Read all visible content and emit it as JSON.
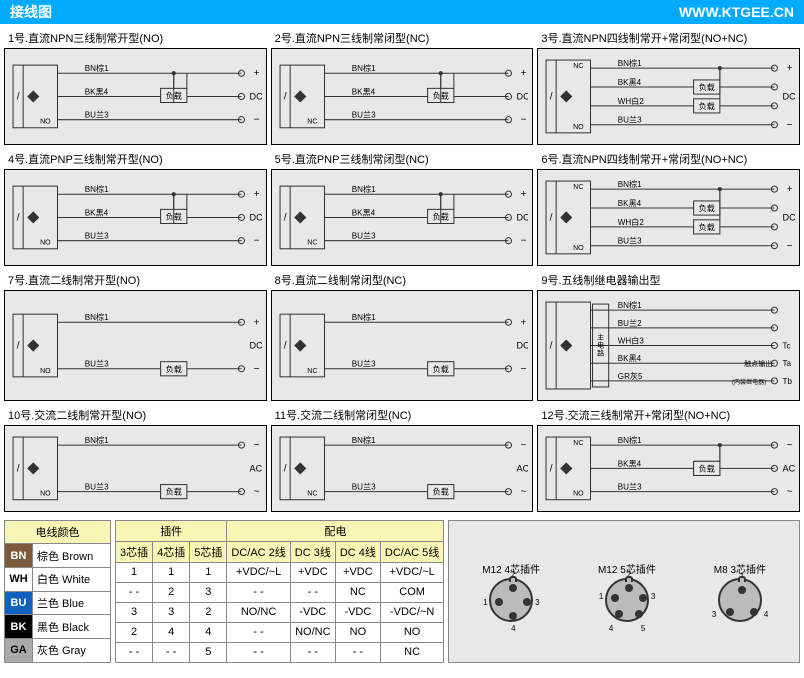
{
  "header": {
    "title": "接线图",
    "url": "WWW.KTGEE.CN"
  },
  "cells": [
    {
      "title": "1号.直流NPN三线制常开型(NO)",
      "wires": [
        "BN棕1",
        "BK黑4",
        "BU兰3"
      ],
      "right": [
        "+",
        "DC",
        "−"
      ],
      "mode": "NO",
      "load_pos": "mid"
    },
    {
      "title": "2号.直流NPN三线制常闭型(NC)",
      "wires": [
        "BN棕1",
        "BK黑4",
        "BU兰3"
      ],
      "right": [
        "+",
        "DC",
        "−"
      ],
      "mode": "NC",
      "load_pos": "mid"
    },
    {
      "title": "3号.直流NPN四线制常开+常闭型(NO+NC)",
      "wires": [
        "BN棕1",
        "BK黑4",
        "WH白2",
        "BU兰3"
      ],
      "right": [
        "+",
        "DC",
        "",
        "−"
      ],
      "mode": "NO/NC",
      "load_pos": "two"
    },
    {
      "title": "4号.直流PNP三线制常开型(NO)",
      "wires": [
        "BN棕1",
        "BK黑4",
        "BU兰3"
      ],
      "right": [
        "+",
        "DC",
        "−"
      ],
      "mode": "NO",
      "load_pos": "mid"
    },
    {
      "title": "5号.直流PNP三线制常闭型(NC)",
      "wires": [
        "BN棕1",
        "BK黑4",
        "BU兰3"
      ],
      "right": [
        "+",
        "DC",
        "−"
      ],
      "mode": "NC",
      "load_pos": "mid"
    },
    {
      "title": "6号.直流NPN四线制常开+常闭型(NO+NC)",
      "wires": [
        "BN棕1",
        "BK黑4",
        "WH白2",
        "BU兰3"
      ],
      "right": [
        "+",
        "DC",
        "",
        "−"
      ],
      "mode": "NO/NC",
      "load_pos": "two"
    },
    {
      "title": "7号.直流二线制常开型(NO)",
      "wires": [
        "BN棕1",
        "BU兰3"
      ],
      "right": [
        "+",
        "DC",
        "−"
      ],
      "mode": "NO",
      "load_pos": "bot"
    },
    {
      "title": "8号.直流二线制常闭型(NC)",
      "wires": [
        "BN棕1",
        "BU兰3"
      ],
      "right": [
        "+",
        "DC",
        "−"
      ],
      "mode": "NC",
      "load_pos": "bot"
    },
    {
      "title": "9号.五线制继电器输出型",
      "wires": [
        "BN棕1",
        "BU兰2",
        "WH白3",
        "BK黑4",
        "GR灰5"
      ],
      "right": [
        "",
        "",
        "Tc",
        "Ta",
        "Tb"
      ],
      "mode": "relay",
      "extra": [
        "主电路",
        "触点输出",
        "(内装继电器)"
      ]
    },
    {
      "title": "10号.交流二线制常开型(NO)",
      "wires": [
        "BN棕1",
        "BU兰3"
      ],
      "right": [
        "~",
        "AC",
        "~"
      ],
      "mode": "NO",
      "load_pos": "bot"
    },
    {
      "title": "11号.交流二线制常闭型(NC)",
      "wires": [
        "BN棕1",
        "BU兰3"
      ],
      "right": [
        "~",
        "AC",
        "~"
      ],
      "mode": "NC",
      "load_pos": "bot"
    },
    {
      "title": "12号.交流三线制常开+常闭型(NO+NC)",
      "wires": [
        "BN棕1",
        "BK黑4",
        "BU兰3"
      ],
      "right": [
        "~",
        "AC",
        "~"
      ],
      "mode": "NO/NC",
      "load_pos": "two"
    }
  ],
  "load_text": "负载",
  "color_table": {
    "header": "电线颜色",
    "rows": [
      {
        "code": "BN",
        "bg": "#7a5a3a",
        "name": "棕色 Brown"
      },
      {
        "code": "WH",
        "bg": "#ffffff",
        "fg": "#000",
        "name": "白色 White"
      },
      {
        "code": "BU",
        "bg": "#1060c0",
        "name": "兰色 Blue"
      },
      {
        "code": "BK",
        "bg": "#000000",
        "name": "黑色 Black"
      },
      {
        "code": "GA",
        "bg": "#aaaaaa",
        "fg": "#000",
        "name": "灰色 Gray"
      }
    ]
  },
  "pin_table": {
    "head1": [
      "插件",
      "配电"
    ],
    "head2": [
      "3芯插",
      "4芯插",
      "5芯插",
      "DC/AC 2线",
      "DC 3线",
      "DC 4线",
      "DC/AC 5线"
    ],
    "rows": [
      [
        "1",
        "1",
        "1",
        "+VDC/~L",
        "+VDC",
        "+VDC",
        "+VDC/~L"
      ],
      [
        "- -",
        "2",
        "3",
        "- -",
        "- -",
        "NC",
        "COM"
      ],
      [
        "3",
        "3",
        "2",
        "NO/NC",
        "-VDC",
        "-VDC",
        "-VDC/~N"
      ],
      [
        "2",
        "4",
        "4",
        "- -",
        "NO/NC",
        "NO",
        "NO"
      ],
      [
        "- -",
        "- -",
        "5",
        "- -",
        "- -",
        "- -",
        "NC"
      ]
    ]
  },
  "connectors": [
    {
      "label": "M12 4芯插件",
      "pins": 4
    },
    {
      "label": "M12 5芯插件",
      "pins": 5
    },
    {
      "label": "M8 3芯插件",
      "pins": 3
    }
  ]
}
